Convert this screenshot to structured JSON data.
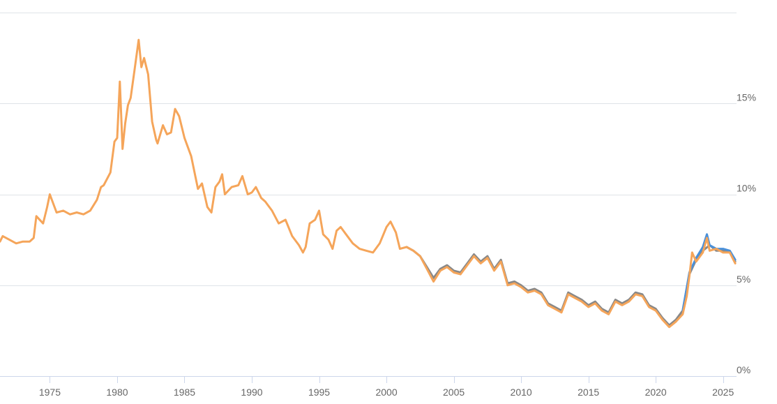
{
  "chart_data": {
    "type": "line",
    "title": "",
    "xlabel": "",
    "ylabel": "",
    "xlim": [
      1971.3,
      2026.0
    ],
    "ylim": [
      0,
      20
    ],
    "y_axis_position": "right",
    "grid": true,
    "legend": "none",
    "x_ticks": [
      1975,
      1980,
      1985,
      1990,
      1995,
      2000,
      2005,
      2010,
      2015,
      2020,
      2025
    ],
    "x_tick_labels": [
      "1975",
      "1980",
      "1985",
      "1990",
      "1995",
      "2000",
      "2005",
      "2010",
      "2015",
      "2020",
      "2025"
    ],
    "y_ticks": [
      0,
      5,
      10,
      15
    ],
    "y_tick_labels": [
      "0%",
      "5%",
      "10%",
      "15%"
    ],
    "series": [
      {
        "color": "#888888",
        "x": [
          2001.5,
          2002.0,
          2002.5,
          2003.0,
          2003.5,
          2004.0,
          2004.5,
          2005.0,
          2005.5,
          2006.0,
          2006.5,
          2007.0,
          2007.5,
          2008.0,
          2008.5,
          2009.0,
          2009.5,
          2010.0,
          2010.5,
          2011.0,
          2011.5,
          2012.0,
          2012.5,
          2013.0,
          2013.5,
          2014.0,
          2014.5,
          2015.0,
          2015.5,
          2016.0,
          2016.5,
          2017.0,
          2017.5,
          2018.0,
          2018.5,
          2019.0,
          2019.5,
          2020.0,
          2020.5,
          2021.0,
          2021.5,
          2022.0,
          2022.5,
          2023.0,
          2023.5,
          2024.0,
          2024.5,
          2025.0,
          2025.5,
          2025.9
        ],
        "y": [
          7.1,
          6.9,
          6.6,
          6.0,
          5.4,
          5.9,
          6.1,
          5.8,
          5.7,
          6.2,
          6.7,
          6.3,
          6.6,
          5.9,
          6.4,
          5.1,
          5.2,
          5.0,
          4.7,
          4.8,
          4.6,
          4.0,
          3.8,
          3.6,
          4.6,
          4.4,
          4.2,
          3.9,
          4.1,
          3.7,
          3.5,
          4.2,
          4.0,
          4.2,
          4.6,
          4.5,
          3.9,
          3.7,
          3.2,
          2.8,
          3.1,
          3.6,
          5.6,
          6.4,
          6.9,
          7.2,
          6.9,
          6.9,
          6.8,
          6.3
        ]
      },
      {
        "color": "#4a90d9",
        "x": [
          2022.0,
          2022.5,
          2023.0,
          2023.5,
          2023.8,
          2024.0,
          2024.5,
          2025.0,
          2025.5,
          2025.9
        ],
        "y": [
          3.6,
          5.7,
          6.5,
          7.1,
          7.8,
          7.2,
          7.0,
          7.0,
          6.9,
          6.4
        ]
      },
      {
        "color": "#f5a55a",
        "x": [
          1971.3,
          1971.5,
          1972.0,
          1972.5,
          1973.0,
          1973.5,
          1973.8,
          1974.0,
          1974.5,
          1974.8,
          1975.0,
          1975.5,
          1976.0,
          1976.5,
          1977.0,
          1977.5,
          1978.0,
          1978.5,
          1978.8,
          1979.0,
          1979.5,
          1979.8,
          1980.0,
          1980.2,
          1980.4,
          1980.6,
          1980.8,
          1981.0,
          1981.3,
          1981.6,
          1981.8,
          1982.0,
          1982.3,
          1982.6,
          1982.9,
          1983.0,
          1983.4,
          1983.7,
          1984.0,
          1984.3,
          1984.6,
          1985.0,
          1985.5,
          1986.0,
          1986.3,
          1986.7,
          1987.0,
          1987.3,
          1987.6,
          1987.8,
          1988.0,
          1988.5,
          1989.0,
          1989.3,
          1989.7,
          1990.0,
          1990.3,
          1990.7,
          1991.0,
          1991.5,
          1992.0,
          1992.5,
          1993.0,
          1993.5,
          1993.8,
          1994.0,
          1994.3,
          1994.7,
          1995.0,
          1995.3,
          1995.7,
          1996.0,
          1996.3,
          1996.6,
          1997.0,
          1997.5,
          1998.0,
          1998.5,
          1999.0,
          1999.5,
          2000.0,
          2000.3,
          2000.7,
          2001.0,
          2001.5,
          2002.0,
          2002.5,
          2003.0,
          2003.5,
          2004.0,
          2004.5,
          2005.0,
          2005.5,
          2006.0,
          2006.5,
          2007.0,
          2007.5,
          2008.0,
          2008.5,
          2009.0,
          2009.5,
          2010.0,
          2010.5,
          2011.0,
          2011.5,
          2012.0,
          2012.5,
          2013.0,
          2013.5,
          2014.0,
          2014.5,
          2015.0,
          2015.5,
          2016.0,
          2016.5,
          2017.0,
          2017.5,
          2018.0,
          2018.5,
          2019.0,
          2019.5,
          2020.0,
          2020.5,
          2021.0,
          2021.5,
          2022.0,
          2022.3,
          2022.5,
          2022.7,
          2023.0,
          2023.5,
          2023.8,
          2024.0,
          2024.5,
          2025.0,
          2025.5,
          2025.9
        ],
        "y": [
          7.4,
          7.7,
          7.5,
          7.3,
          7.4,
          7.4,
          7.6,
          8.8,
          8.4,
          9.3,
          10.0,
          9.0,
          9.1,
          8.9,
          9.0,
          8.9,
          9.1,
          9.7,
          10.4,
          10.5,
          11.2,
          12.9,
          13.1,
          16.2,
          12.5,
          13.9,
          14.9,
          15.3,
          16.9,
          18.5,
          17.0,
          17.5,
          16.6,
          14.0,
          13.0,
          12.8,
          13.8,
          13.3,
          13.4,
          14.7,
          14.3,
          13.1,
          12.1,
          10.3,
          10.6,
          9.3,
          9.0,
          10.4,
          10.7,
          11.1,
          10.0,
          10.4,
          10.5,
          11.0,
          10.0,
          10.1,
          10.4,
          9.8,
          9.6,
          9.1,
          8.4,
          8.6,
          7.7,
          7.2,
          6.8,
          7.1,
          8.4,
          8.6,
          9.1,
          7.8,
          7.5,
          7.0,
          8.0,
          8.2,
          7.8,
          7.3,
          7.0,
          6.9,
          6.8,
          7.3,
          8.2,
          8.5,
          7.9,
          7.0,
          7.1,
          6.9,
          6.6,
          5.9,
          5.2,
          5.8,
          6.0,
          5.7,
          5.6,
          6.1,
          6.6,
          6.2,
          6.5,
          5.8,
          6.3,
          5.0,
          5.1,
          4.9,
          4.6,
          4.7,
          4.5,
          3.9,
          3.7,
          3.5,
          4.5,
          4.3,
          4.1,
          3.8,
          4.0,
          3.6,
          3.4,
          4.1,
          3.9,
          4.1,
          4.5,
          4.4,
          3.8,
          3.6,
          3.1,
          2.7,
          3.0,
          3.4,
          4.4,
          5.5,
          6.8,
          6.3,
          6.8,
          7.6,
          6.9,
          7.0,
          6.8,
          6.8,
          6.2
        ]
      }
    ]
  }
}
